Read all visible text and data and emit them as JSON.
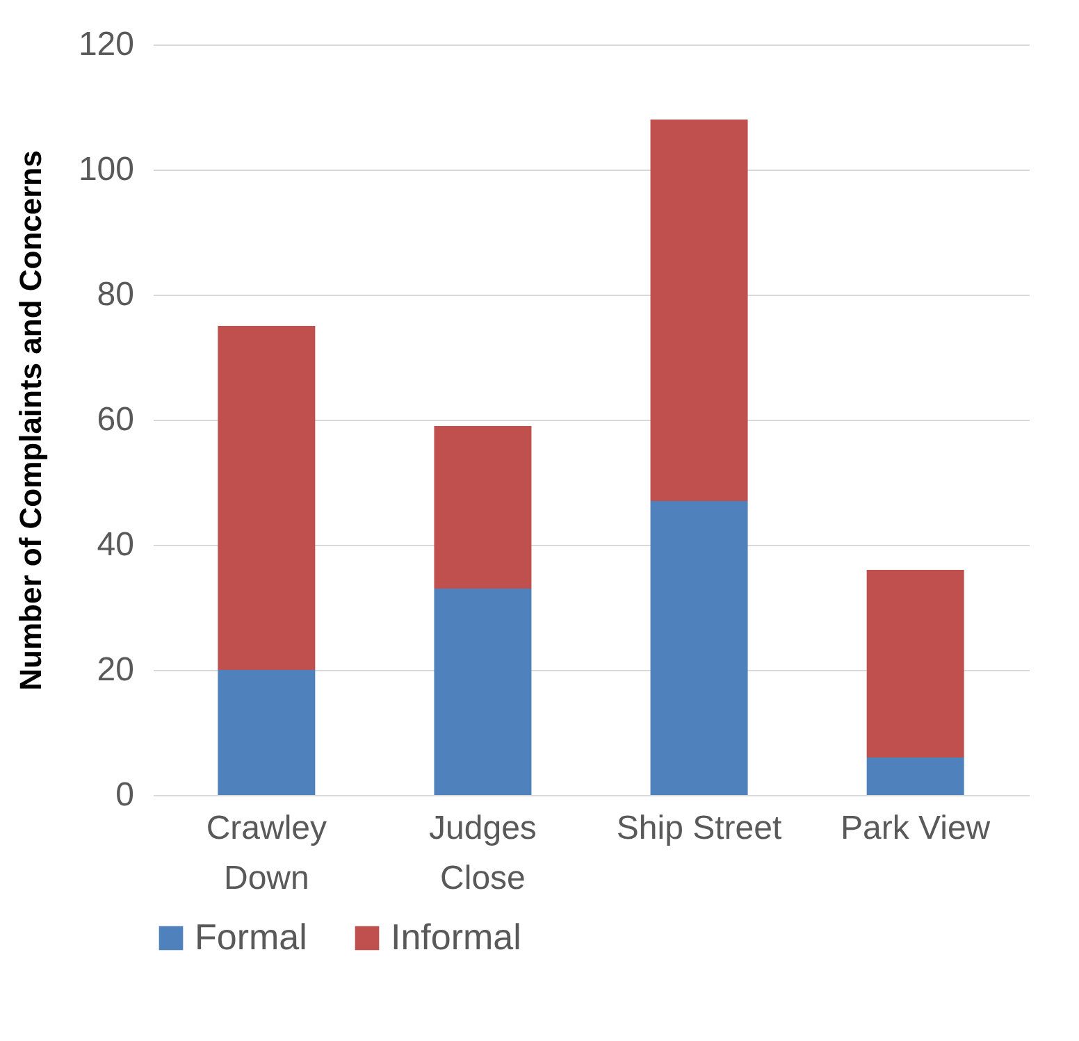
{
  "chart_data": {
    "type": "bar",
    "stacked": true,
    "ylabel": "Number of Complaints and Concerns",
    "categories": [
      "Crawley Down",
      "Judges Close",
      "Ship Street",
      "Park View"
    ],
    "series": [
      {
        "name": "Formal",
        "color": "#4f81bd",
        "values": [
          20,
          33,
          47,
          6
        ]
      },
      {
        "name": "Informal",
        "color": "#c0504d",
        "values": [
          55,
          26,
          61,
          30
        ]
      }
    ],
    "ylim": [
      0,
      120
    ],
    "yticks": [
      0,
      20,
      40,
      60,
      80,
      100,
      120
    ],
    "grid": "y",
    "legend": "bottom"
  }
}
